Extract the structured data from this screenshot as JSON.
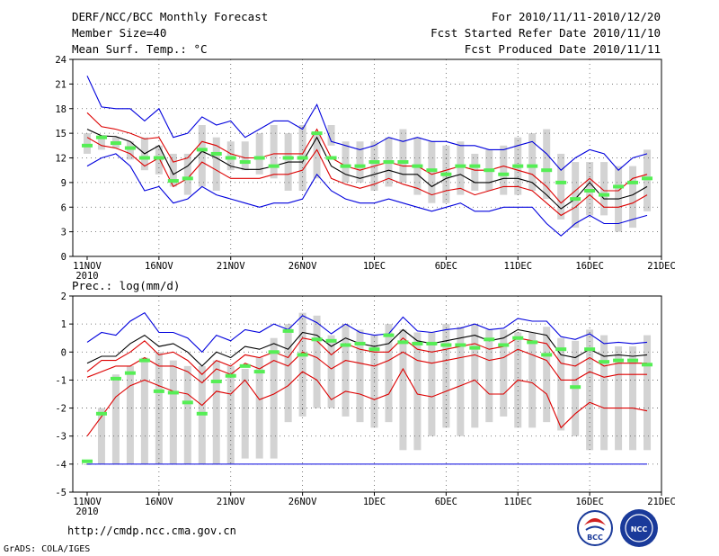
{
  "header": {
    "title": "DERF/NCC/BCC Monthly Forecast",
    "member_size": "Member Size=40",
    "variable1": "Mean Surf. Temp.: °C",
    "period": "For 2010/11/11-2010/12/20",
    "started": "Fcst Started Refer Date 2010/11/10",
    "produced": "Fcst Produced Date 2010/11/11"
  },
  "footer": {
    "url": "http://cmdp.ncc.cma.gov.cn",
    "grads": "GrADS: COLA/IGES",
    "logo_bcc": "BCC",
    "logo_ncc": "NCC"
  },
  "colors": {
    "envelope": "#0000dd",
    "spread": "#dd0000",
    "mean": "#000000",
    "box": "#d3d3d3",
    "marker": "#55ee55"
  },
  "chart_data": [
    {
      "type": "box-ensemble",
      "title": "Mean Surf. Temp.: °C",
      "xlabel": "",
      "ylabel": "",
      "ylim": [
        0,
        24
      ],
      "yticks": [
        "0",
        "3",
        "6",
        "9",
        "12",
        "15",
        "18",
        "21",
        "24"
      ],
      "xticks": [
        "11NOV",
        "16NOV",
        "21NOV",
        "26NOV",
        "1DEC",
        "6DEC",
        "11DEC",
        "16DEC",
        "21DEC"
      ],
      "xtick_sub": "2010",
      "days": 40,
      "grid": "dotted",
      "box_low": [
        12.5,
        13.0,
        13.2,
        11.8,
        10.5,
        10.0,
        8.5,
        7.5,
        8.5,
        8.0,
        10.5,
        10.5,
        10.0,
        9.5,
        8.0,
        8.0,
        9.5,
        13.5,
        9.0,
        9.0,
        8.0,
        8.5,
        9.0,
        7.5,
        6.5,
        6.5,
        7.5,
        8.0,
        8.0,
        7.5,
        7.5,
        8.0,
        7.0,
        4.5,
        3.5,
        5.0,
        5.0,
        3.0,
        3.5,
        5.5
      ],
      "box_high": [
        15.0,
        14.5,
        14.5,
        14.0,
        14.5,
        13.5,
        12.5,
        12.5,
        16.0,
        14.5,
        14.0,
        14.0,
        15.0,
        16.0,
        15.0,
        16.0,
        15.0,
        16.0,
        14.0,
        14.0,
        14.0,
        14.5,
        15.5,
        14.5,
        14.0,
        13.5,
        14.0,
        12.5,
        13.0,
        13.5,
        14.5,
        15.0,
        15.5,
        12.5,
        11.5,
        11.5,
        11.5,
        11.0,
        11.0,
        13.0
      ],
      "series": [
        {
          "name": "upper envelope",
          "color": "#0000dd",
          "values": [
            22.0,
            18.2,
            18.0,
            18.0,
            16.5,
            18.0,
            14.5,
            15.0,
            17.0,
            16.0,
            16.5,
            14.5,
            15.5,
            16.5,
            16.5,
            15.5,
            18.5,
            14.0,
            13.5,
            13.0,
            13.5,
            14.5,
            14.0,
            14.5,
            14.0,
            14.0,
            13.5,
            13.5,
            13.0,
            13.0,
            13.5,
            14.0,
            12.5,
            10.5,
            12.0,
            13.0,
            12.5,
            10.5,
            12.0,
            12.5
          ]
        },
        {
          "name": "upper spread",
          "color": "#dd0000",
          "values": [
            17.5,
            15.8,
            15.5,
            15.0,
            14.3,
            14.5,
            11.5,
            12.0,
            14.0,
            13.5,
            12.5,
            12.0,
            12.0,
            12.5,
            12.5,
            12.5,
            15.5,
            12.0,
            11.0,
            10.5,
            11.0,
            11.5,
            11.0,
            11.0,
            10.0,
            10.5,
            11.0,
            10.5,
            10.5,
            11.0,
            10.5,
            10.0,
            8.5,
            6.5,
            8.0,
            9.5,
            8.0,
            8.0,
            9.5,
            10.0
          ]
        },
        {
          "name": "ensemble mean",
          "color": "#000000",
          "values": [
            15.5,
            14.7,
            14.6,
            14.0,
            12.5,
            13.5,
            10.0,
            11.0,
            12.8,
            12.0,
            11.0,
            10.6,
            10.6,
            11.0,
            11.5,
            11.5,
            14.5,
            11.0,
            10.0,
            9.5,
            10.0,
            10.5,
            10.0,
            10.0,
            8.5,
            9.5,
            10.0,
            9.0,
            9.0,
            9.5,
            9.5,
            9.0,
            7.5,
            5.8,
            7.0,
            9.0,
            7.0,
            7.0,
            7.5,
            8.5
          ]
        },
        {
          "name": "lower spread",
          "color": "#dd0000",
          "values": [
            14.5,
            13.5,
            13.2,
            12.5,
            11.0,
            12.0,
            8.5,
            9.5,
            11.5,
            10.5,
            9.5,
            9.5,
            9.5,
            10.0,
            10.0,
            10.5,
            13.0,
            9.5,
            8.8,
            8.3,
            8.8,
            9.5,
            8.8,
            8.3,
            7.5,
            8.0,
            8.3,
            7.5,
            8.0,
            8.5,
            8.5,
            8.0,
            6.5,
            5.0,
            6.0,
            7.5,
            6.0,
            6.0,
            6.5,
            7.5
          ]
        },
        {
          "name": "lower envelope",
          "color": "#0000dd",
          "values": [
            11.0,
            12.0,
            12.5,
            11.0,
            8.0,
            8.5,
            6.5,
            7.0,
            8.5,
            7.5,
            7.0,
            6.5,
            6.0,
            6.5,
            6.5,
            7.0,
            10.0,
            8.0,
            7.0,
            6.5,
            6.5,
            7.0,
            6.5,
            6.0,
            5.5,
            6.0,
            6.5,
            5.5,
            5.5,
            6.0,
            6.0,
            6.0,
            4.0,
            2.5,
            4.0,
            5.0,
            4.0,
            4.0,
            4.5,
            5.0
          ]
        }
      ],
      "markers": [
        13.5,
        14.5,
        13.8,
        13.2,
        12.0,
        12.0,
        9.2,
        9.5,
        13.0,
        12.5,
        12.0,
        11.5,
        12.0,
        11.0,
        12.0,
        12.0,
        15.0,
        12.0,
        11.0,
        11.0,
        11.5,
        11.5,
        11.5,
        11.0,
        10.5,
        10.0,
        11.0,
        11.0,
        10.5,
        10.0,
        11.0,
        11.0,
        10.5,
        9.0,
        7.0,
        8.0,
        7.5,
        8.5,
        9.0,
        9.5
      ]
    },
    {
      "type": "box-ensemble",
      "title": "Prec.: log(mm/d)",
      "xlabel": "",
      "ylabel": "",
      "ylim": [
        -5,
        2
      ],
      "yticks": [
        "-5",
        "-4",
        "-3",
        "-2",
        "-1",
        "0",
        "1",
        "2"
      ],
      "xticks": [
        "11NOV",
        "16NOV",
        "21NOV",
        "26NOV",
        "1DEC",
        "6DEC",
        "11DEC",
        "16DEC",
        "21DEC"
      ],
      "xtick_sub": "2010",
      "days": 40,
      "grid": "dotted",
      "floor": -4,
      "box_low": [
        -4,
        -4,
        -4,
        -4,
        -4,
        -4,
        -4,
        -4,
        -4,
        -4,
        -4,
        -3.8,
        -3.8,
        -3.8,
        -2.5,
        -2.3,
        -2.0,
        -2.0,
        -2.3,
        -2.5,
        -2.7,
        -2.5,
        -3.5,
        -3.5,
        -3.0,
        -2.7,
        -3.0,
        -2.7,
        -2.5,
        -2.3,
        -2.7,
        -2.7,
        -2.5,
        -2.8,
        -3.0,
        -3.5,
        -3.5,
        -3.5,
        -3.5,
        -3.5
      ],
      "box_high": [
        -4.0,
        -2.0,
        -0.8,
        -0.5,
        -0.2,
        0.0,
        -0.3,
        -0.5,
        -0.5,
        -0.3,
        -0.5,
        -0.6,
        -0.2,
        0.5,
        1.0,
        1.4,
        1.3,
        0.6,
        1.0,
        0.8,
        0.6,
        1.0,
        0.8,
        0.7,
        0.7,
        1.0,
        0.9,
        1.0,
        0.8,
        0.8,
        0.7,
        0.7,
        0.9,
        0.5,
        0.4,
        0.8,
        0.6,
        0.2,
        0.2,
        0.6
      ],
      "series": [
        {
          "name": "upper envelope",
          "color": "#0000dd",
          "values": [
            0.35,
            0.7,
            0.6,
            1.1,
            1.4,
            0.7,
            0.7,
            0.5,
            0.0,
            0.6,
            0.4,
            0.8,
            0.7,
            1.0,
            0.8,
            1.3,
            1.05,
            0.65,
            1.0,
            0.7,
            0.6,
            0.65,
            1.25,
            0.75,
            0.7,
            0.8,
            0.85,
            1.0,
            0.8,
            0.85,
            1.2,
            1.1,
            1.1,
            0.55,
            0.45,
            0.65,
            0.3,
            0.35,
            0.3,
            0.35
          ]
        },
        {
          "name": "upper spread",
          "color": "#dd0000",
          "values": [
            -0.7,
            -0.3,
            -0.3,
            0.0,
            0.4,
            -0.1,
            0.0,
            -0.3,
            -0.8,
            -0.3,
            -0.5,
            -0.1,
            -0.2,
            0.0,
            -0.2,
            0.5,
            0.4,
            -0.1,
            0.3,
            0.1,
            0.0,
            0.0,
            0.5,
            0.1,
            0.0,
            0.1,
            0.2,
            0.3,
            0.1,
            0.2,
            0.5,
            0.4,
            0.3,
            -0.4,
            -0.5,
            -0.2,
            -0.5,
            -0.4,
            -0.4,
            -0.4
          ]
        },
        {
          "name": "ensemble mean",
          "color": "#000000",
          "values": [
            -0.4,
            -0.15,
            -0.15,
            0.3,
            0.6,
            0.2,
            0.3,
            0.0,
            -0.5,
            0.0,
            -0.2,
            0.2,
            0.1,
            0.3,
            0.1,
            0.7,
            0.6,
            0.2,
            0.5,
            0.3,
            0.2,
            0.3,
            0.8,
            0.4,
            0.3,
            0.4,
            0.5,
            0.6,
            0.4,
            0.5,
            0.8,
            0.7,
            0.6,
            -0.1,
            -0.2,
            0.1,
            -0.15,
            -0.1,
            -0.15,
            -0.1
          ]
        },
        {
          "name": "lower spread",
          "color": "#dd0000",
          "values": [
            -0.9,
            -0.7,
            -0.5,
            -0.5,
            -0.2,
            -0.5,
            -0.5,
            -0.7,
            -1.1,
            -0.6,
            -0.8,
            -0.4,
            -0.6,
            -0.3,
            -0.5,
            0.0,
            -0.2,
            -0.6,
            -0.3,
            -0.4,
            -0.5,
            -0.3,
            0.0,
            -0.3,
            -0.4,
            -0.3,
            -0.2,
            -0.1,
            -0.3,
            -0.2,
            0.1,
            -0.1,
            -0.3,
            -1.0,
            -1.0,
            -0.7,
            -0.9,
            -0.8,
            -0.8,
            -0.8
          ]
        },
        {
          "name": "lower envelope",
          "color": "#dd0000",
          "values": [
            -3.0,
            -2.3,
            -1.6,
            -1.2,
            -1.0,
            -1.2,
            -1.4,
            -1.5,
            -1.9,
            -1.4,
            -1.5,
            -1.0,
            -1.7,
            -1.5,
            -1.2,
            -0.7,
            -1.0,
            -1.7,
            -1.4,
            -1.5,
            -1.7,
            -1.5,
            -0.6,
            -1.5,
            -1.6,
            -1.4,
            -1.2,
            -1.0,
            -1.5,
            -1.5,
            -1.0,
            -1.1,
            -1.5,
            -2.7,
            -2.2,
            -1.8,
            -2.0,
            -2.0,
            -2.0,
            -2.1
          ]
        }
      ],
      "markers": [
        -3.9,
        -2.2,
        -0.95,
        -0.75,
        -0.3,
        -1.4,
        -1.45,
        -1.8,
        -2.2,
        -1.05,
        -0.85,
        -0.5,
        -0.7,
        0.0,
        0.75,
        -0.1,
        0.45,
        0.4,
        0.25,
        0.3,
        0.1,
        0.6,
        0.35,
        0.3,
        0.3,
        0.25,
        0.25,
        0.15,
        0.45,
        0.25,
        0.5,
        0.35,
        -0.1,
        0.1,
        -1.25,
        0.1,
        -0.35,
        -0.3,
        -0.3,
        -0.45
      ]
    }
  ]
}
